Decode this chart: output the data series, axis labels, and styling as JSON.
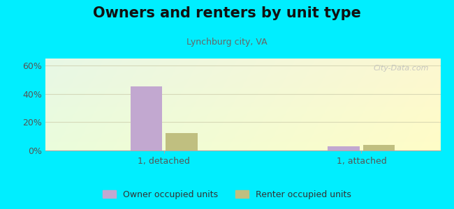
{
  "title": "Owners and renters by unit type",
  "subtitle": "Lynchburg city, VA",
  "categories": [
    "1, detached",
    "1, attached"
  ],
  "owner_values": [
    45.5,
    3.0
  ],
  "renter_values": [
    12.5,
    4.0
  ],
  "owner_color": "#c2a8d0",
  "renter_color": "#c0bf80",
  "bar_width": 0.32,
  "ylim": [
    0,
    65
  ],
  "yticks": [
    0,
    20,
    40,
    60
  ],
  "ytick_labels": [
    "0%",
    "20%",
    "40%",
    "60%"
  ],
  "background_outer": "#00eeff",
  "legend_owner": "Owner occupied units",
  "legend_renter": "Renter occupied units",
  "title_fontsize": 15,
  "subtitle_fontsize": 9,
  "tick_fontsize": 9,
  "legend_fontsize": 9,
  "grid_color": "#ddddcc",
  "watermark": "City-Data.com"
}
